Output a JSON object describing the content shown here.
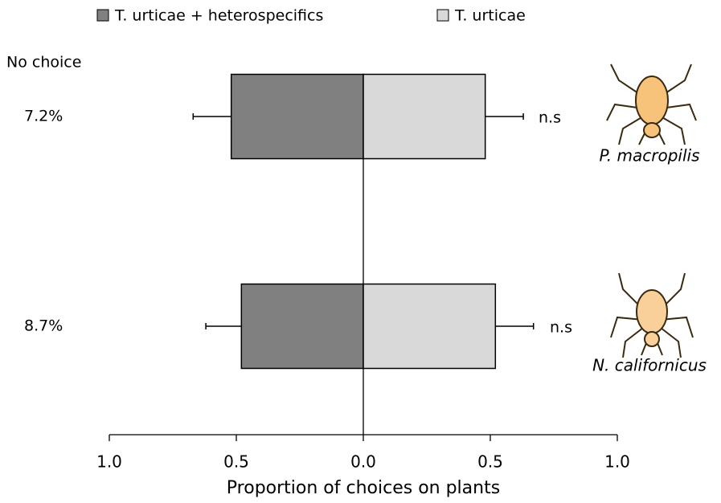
{
  "chart_data": {
    "type": "bar",
    "categories": [
      "P. macropilis",
      "N. californicus"
    ],
    "series": [
      {
        "name": "T. urticae + heterospecifics",
        "color": "#808080",
        "values": [
          -0.52,
          -0.48
        ],
        "errors": [
          0.15,
          0.14
        ]
      },
      {
        "name": "T. urticae",
        "color": "#d9d9d9",
        "values": [
          0.48,
          0.52
        ],
        "errors": [
          0.15,
          0.15
        ]
      }
    ],
    "significance": [
      "n.s",
      "n.s"
    ],
    "no_choice": {
      "label": "No choice",
      "values": [
        7.2,
        8.7
      ],
      "value_labels": [
        "7.2%",
        "8.7%"
      ]
    },
    "xlabel": "Proportion of choices on plants",
    "xlim": [
      -1,
      1
    ],
    "xticks": [
      {
        "value": -1,
        "label": "1.0"
      },
      {
        "value": -0.5,
        "label": "0.5"
      },
      {
        "value": 0,
        "label": "0.0"
      },
      0.5,
      {
        "value": 1,
        "label": "1.0"
      }
    ]
  }
}
